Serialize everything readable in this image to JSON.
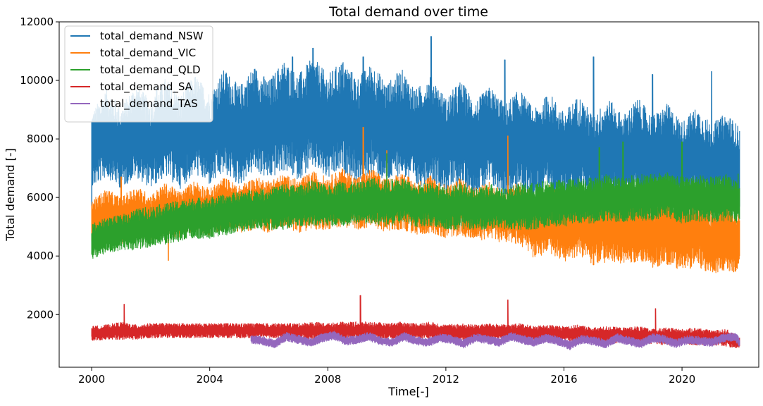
{
  "chart_data": {
    "type": "line",
    "title": "Total demand over time",
    "xlabel": "Time[-]",
    "ylabel": "Total demand [-]",
    "xlim": [
      1998.9,
      2022.6
    ],
    "ylim": [
      200,
      12000
    ],
    "xticks": [
      2000,
      2004,
      2008,
      2012,
      2016,
      2020
    ],
    "yticks": [
      2000,
      4000,
      6000,
      8000,
      10000,
      12000
    ],
    "grid": false,
    "legend_position": "upper-left",
    "x_unit": "year",
    "series": [
      {
        "name": "total_demand_NSW",
        "color": "#1f77b4",
        "x": [
          2000.0,
          2000.5,
          2001.0,
          2001.5,
          2002.0,
          2002.5,
          2003.0,
          2003.5,
          2004.0,
          2004.5,
          2005.0,
          2005.5,
          2006.0,
          2006.5,
          2007.0,
          2007.5,
          2008.0,
          2008.5,
          2009.0,
          2009.5,
          2010.0,
          2010.5,
          2011.0,
          2011.5,
          2012.0,
          2012.5,
          2013.0,
          2013.5,
          2014.0,
          2014.5,
          2015.0,
          2015.5,
          2016.0,
          2016.5,
          2017.0,
          2017.5,
          2018.0,
          2018.5,
          2019.0,
          2019.5,
          2020.0,
          2020.5,
          2021.0,
          2021.5,
          2021.95
        ],
        "mid": [
          7600,
          8200,
          7700,
          8300,
          7800,
          8400,
          7900,
          8500,
          8000,
          8600,
          8100,
          8700,
          8300,
          8800,
          8400,
          8900,
          8400,
          8800,
          8300,
          8700,
          8200,
          8600,
          8000,
          8400,
          7800,
          8200,
          7700,
          8100,
          7600,
          8000,
          7500,
          7900,
          7400,
          7800,
          7300,
          7700,
          7300,
          7700,
          7300,
          7600,
          7200,
          7500,
          7100,
          7400,
          7000
        ],
        "band": [
          1300,
          1500,
          1400,
          1600,
          1500,
          1700,
          1600,
          1700,
          1600,
          1800,
          1700,
          1800,
          1700,
          1900,
          1800,
          1900,
          1800,
          1900,
          1800,
          1900,
          1700,
          1800,
          1700,
          1800,
          1600,
          1800,
          1600,
          1700,
          1600,
          1700,
          1500,
          1700,
          1500,
          1700,
          1500,
          1700,
          1500,
          1700,
          1500,
          1600,
          1400,
          1600,
          1400,
          1500,
          1400
        ],
        "peaks": [
          [
            2000.0,
            5700
          ],
          [
            2002.2,
            9800
          ],
          [
            2006.8,
            10800
          ],
          [
            2007.5,
            11100
          ],
          [
            2009.2,
            10800
          ],
          [
            2011.5,
            11500
          ],
          [
            2014.0,
            10700
          ],
          [
            2017.0,
            10800
          ],
          [
            2019.0,
            10200
          ],
          [
            2021.0,
            10300
          ],
          [
            2021.9,
            6200
          ]
        ]
      },
      {
        "name": "total_demand_VIC",
        "color": "#ff7f0e",
        "x": [
          2000.0,
          2000.5,
          2001.0,
          2001.5,
          2002.0,
          2002.5,
          2003.0,
          2003.5,
          2004.0,
          2004.5,
          2005.0,
          2005.5,
          2006.0,
          2006.5,
          2007.0,
          2007.5,
          2008.0,
          2008.5,
          2009.0,
          2009.5,
          2010.0,
          2010.5,
          2011.0,
          2011.5,
          2012.0,
          2012.5,
          2013.0,
          2013.5,
          2014.0,
          2014.5,
          2015.0,
          2015.5,
          2016.0,
          2016.5,
          2017.0,
          2017.5,
          2018.0,
          2018.5,
          2019.0,
          2019.5,
          2020.0,
          2020.5,
          2021.0,
          2021.5,
          2021.95
        ],
        "mid": [
          5100,
          5400,
          5200,
          5500,
          5300,
          5600,
          5400,
          5700,
          5500,
          5800,
          5600,
          5800,
          5700,
          5900,
          5700,
          5900,
          5800,
          6000,
          5800,
          6000,
          5700,
          5900,
          5600,
          5800,
          5500,
          5700,
          5400,
          5600,
          5300,
          5500,
          5000,
          5300,
          4900,
          5200,
          4800,
          5100,
          4800,
          5100,
          4700,
          5000,
          4600,
          4900,
          4500,
          4800,
          4400
        ],
        "band": [
          800,
          900,
          800,
          900,
          800,
          900,
          800,
          900,
          800,
          900,
          800,
          900,
          900,
          900,
          900,
          1000,
          900,
          1000,
          900,
          1000,
          900,
          1000,
          900,
          1000,
          900,
          1000,
          900,
          1000,
          900,
          1100,
          1100,
          1200,
          1100,
          1200,
          1100,
          1300,
          1100,
          1300,
          1100,
          1300,
          1100,
          1300,
          1100,
          1300,
          1000
        ],
        "peaks": [
          [
            2001.0,
            6700
          ],
          [
            2002.6,
            3850
          ],
          [
            2009.2,
            8400
          ],
          [
            2010.0,
            7600
          ],
          [
            2014.1,
            8100
          ],
          [
            2017.0,
            3700
          ],
          [
            2020.8,
            3500
          ]
        ]
      },
      {
        "name": "total_demand_QLD",
        "color": "#2ca02c",
        "x": [
          2000.0,
          2000.5,
          2001.0,
          2001.5,
          2002.0,
          2002.5,
          2003.0,
          2003.5,
          2004.0,
          2004.5,
          2005.0,
          2005.5,
          2006.0,
          2006.5,
          2007.0,
          2007.5,
          2008.0,
          2008.5,
          2009.0,
          2009.5,
          2010.0,
          2010.5,
          2011.0,
          2011.5,
          2012.0,
          2012.5,
          2013.0,
          2013.5,
          2014.0,
          2014.5,
          2015.0,
          2015.5,
          2016.0,
          2016.5,
          2017.0,
          2017.5,
          2018.0,
          2018.5,
          2019.0,
          2019.5,
          2020.0,
          2020.5,
          2021.0,
          2021.5,
          2021.95
        ],
        "mid": [
          4500,
          4700,
          4800,
          4900,
          5000,
          5100,
          5200,
          5300,
          5300,
          5400,
          5500,
          5600,
          5600,
          5700,
          5700,
          5800,
          5700,
          5800,
          5800,
          5900,
          5800,
          5900,
          5700,
          5800,
          5600,
          5700,
          5600,
          5700,
          5600,
          5700,
          5700,
          5800,
          5800,
          5900,
          5900,
          6000,
          5900,
          6000,
          6000,
          6100,
          5900,
          6000,
          5900,
          6000,
          5800
        ],
        "band": [
          600,
          600,
          600,
          700,
          700,
          700,
          700,
          700,
          700,
          700,
          700,
          700,
          700,
          800,
          700,
          800,
          700,
          800,
          700,
          800,
          800,
          800,
          700,
          800,
          700,
          800,
          700,
          800,
          700,
          800,
          800,
          800,
          800,
          800,
          800,
          800,
          800,
          800,
          800,
          800,
          800,
          800,
          800,
          800,
          700
        ],
        "peaks": [
          [
            2010.0,
            7500
          ],
          [
            2017.2,
            7700
          ],
          [
            2018.0,
            7900
          ],
          [
            2020.0,
            7900
          ],
          [
            2021.9,
            6800
          ]
        ]
      },
      {
        "name": "total_demand_SA",
        "color": "#d62728",
        "x": [
          2000.0,
          2000.5,
          2001.0,
          2001.5,
          2002.0,
          2002.5,
          2003.0,
          2003.5,
          2004.0,
          2004.5,
          2005.0,
          2005.5,
          2006.0,
          2006.5,
          2007.0,
          2007.5,
          2008.0,
          2008.5,
          2009.0,
          2009.5,
          2010.0,
          2010.5,
          2011.0,
          2011.5,
          2012.0,
          2012.5,
          2013.0,
          2013.5,
          2014.0,
          2014.5,
          2015.0,
          2015.5,
          2016.0,
          2016.5,
          2017.0,
          2017.5,
          2018.0,
          2018.5,
          2019.0,
          2019.5,
          2020.0,
          2020.5,
          2021.0,
          2021.5,
          2021.95
        ],
        "mid": [
          1350,
          1400,
          1450,
          1400,
          1450,
          1450,
          1450,
          1450,
          1450,
          1450,
          1450,
          1450,
          1450,
          1450,
          1450,
          1450,
          1450,
          1450,
          1450,
          1450,
          1450,
          1450,
          1450,
          1450,
          1400,
          1400,
          1400,
          1400,
          1400,
          1400,
          1350,
          1350,
          1350,
          1350,
          1300,
          1300,
          1300,
          1300,
          1250,
          1250,
          1250,
          1250,
          1200,
          1200,
          1050
        ],
        "band": [
          250,
          250,
          300,
          250,
          250,
          250,
          250,
          250,
          250,
          250,
          250,
          250,
          250,
          250,
          250,
          300,
          250,
          300,
          300,
          300,
          250,
          300,
          250,
          300,
          250,
          300,
          250,
          300,
          250,
          300,
          250,
          300,
          250,
          300,
          250,
          300,
          250,
          300,
          250,
          300,
          250,
          300,
          250,
          300,
          200
        ],
        "peaks": [
          [
            2001.1,
            2350
          ],
          [
            2009.1,
            2650
          ],
          [
            2014.1,
            2500
          ],
          [
            2019.1,
            2200
          ]
        ]
      },
      {
        "name": "total_demand_TAS",
        "color": "#9467bd",
        "x": [
          2005.4,
          2005.8,
          2006.2,
          2006.6,
          2007.0,
          2007.4,
          2007.8,
          2008.2,
          2008.6,
          2009.0,
          2009.4,
          2009.8,
          2010.2,
          2010.6,
          2011.0,
          2011.4,
          2011.8,
          2012.2,
          2012.6,
          2013.0,
          2013.4,
          2013.8,
          2014.2,
          2014.6,
          2015.0,
          2015.4,
          2015.8,
          2016.2,
          2016.6,
          2017.0,
          2017.4,
          2017.8,
          2018.2,
          2018.6,
          2019.0,
          2019.4,
          2019.8,
          2020.2,
          2020.6,
          2021.0,
          2021.4,
          2021.8,
          2021.95
        ],
        "mid": [
          1150,
          1100,
          1000,
          1250,
          1150,
          1050,
          1200,
          1300,
          1100,
          1150,
          1250,
          1100,
          1050,
          1250,
          1100,
          1050,
          1200,
          1150,
          1000,
          1200,
          1150,
          1050,
          1250,
          1150,
          1050,
          1200,
          1100,
          950,
          1150,
          1100,
          1000,
          1200,
          1100,
          1000,
          1200,
          1150,
          1000,
          1150,
          1100,
          1050,
          1200,
          1250,
          1050
        ],
        "band": [
          150,
          150,
          150,
          150,
          150,
          150,
          150,
          150,
          150,
          150,
          150,
          150,
          150,
          150,
          150,
          150,
          150,
          150,
          150,
          150,
          150,
          150,
          150,
          150,
          150,
          150,
          150,
          150,
          150,
          150,
          150,
          150,
          150,
          150,
          150,
          150,
          150,
          150,
          150,
          150,
          150,
          150,
          150
        ],
        "peaks": [
          [
            2016.2,
            800
          ]
        ]
      }
    ]
  }
}
